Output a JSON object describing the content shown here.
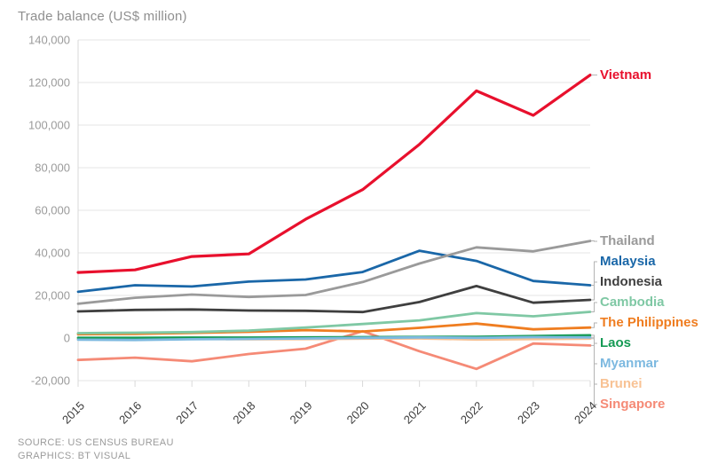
{
  "title": "Trade balance (US$ million)",
  "footer": {
    "source": "SOURCE: US CENSUS BUREAU",
    "graphics": "GRAPHICS: BT VISUAL"
  },
  "chart_data": {
    "type": "line",
    "title": "Trade balance (US$ million)",
    "x": [
      2015,
      2016,
      2017,
      2018,
      2019,
      2020,
      2021,
      2022,
      2023,
      2024
    ],
    "x_tick_labels": [
      "2015",
      "2016",
      "2017",
      "2018",
      "2019",
      "2020",
      "2021",
      "2022",
      "2023",
      "2024"
    ],
    "ylim": [
      -20000,
      140000
    ],
    "y_ticks": [
      140000,
      120000,
      100000,
      80000,
      60000,
      40000,
      20000,
      0,
      -20000
    ],
    "y_tick_labels": [
      "140,000",
      "120,000",
      "100,000",
      "80,000",
      "60,000",
      "40,000",
      "20,000",
      "0",
      "-20,000"
    ],
    "grid": "horizontal",
    "legend_position": "right-inline-labels",
    "series": [
      {
        "name": "Vietnam",
        "color": "#e8102d",
        "values": [
          30800,
          32000,
          38300,
          39500,
          55800,
          69700,
          91000,
          116100,
          104600,
          123500
        ]
      },
      {
        "name": "Thailand",
        "color": "#9a9a9a",
        "values": [
          16100,
          18900,
          20400,
          19300,
          20200,
          26300,
          35000,
          42600,
          40700,
          45600
        ]
      },
      {
        "name": "Malaysia",
        "color": "#1a67a8",
        "values": [
          21700,
          24800,
          24200,
          26500,
          27500,
          31000,
          41000,
          36200,
          26800,
          24800
        ]
      },
      {
        "name": "Indonesia",
        "color": "#3f3f3f",
        "values": [
          12500,
          13200,
          13400,
          12900,
          12800,
          12200,
          16900,
          24400,
          16600,
          17900
        ]
      },
      {
        "name": "Cambodia",
        "color": "#7fc8a4",
        "values": [
          2300,
          2500,
          2800,
          3500,
          4900,
          6600,
          8300,
          11700,
          10200,
          12300
        ]
      },
      {
        "name": "The Philippines",
        "color": "#ef7d20",
        "values": [
          1800,
          1900,
          2400,
          2900,
          3700,
          3100,
          4800,
          6800,
          4100,
          4900
        ]
      },
      {
        "name": "Laos",
        "color": "#159a54",
        "values": [
          100,
          100,
          200,
          200,
          300,
          400,
          500,
          600,
          900,
          1300
        ]
      },
      {
        "name": "Myanmar",
        "color": "#7db9e0",
        "values": [
          -800,
          -900,
          -600,
          -400,
          -200,
          100,
          300,
          100,
          400,
          300
        ]
      },
      {
        "name": "Brunei",
        "color": "#f8c294",
        "values": [
          -400,
          -500,
          -400,
          -600,
          -500,
          -300,
          -200,
          -700,
          -500,
          -300
        ]
      },
      {
        "name": "Singapore",
        "color": "#f58a76",
        "values": [
          -10300,
          -9200,
          -10900,
          -7500,
          -5000,
          3200,
          -6200,
          -14500,
          -2600,
          -3500
        ]
      }
    ]
  }
}
